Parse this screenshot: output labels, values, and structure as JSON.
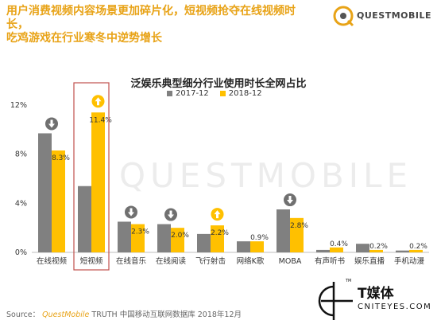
{
  "header": {
    "headline_line1": "用户消费视频内容场景更加碎片化，短视频抢夺在线视频时长，",
    "headline_line2": "吃鸡游戏在行业寒冬中逆势增长",
    "logo_text": "QUESTMOBILE"
  },
  "watermark": "QUESTMOBILE",
  "source": {
    "prefix": "Source：",
    "brand": "QuestMobile",
    "rest": "TRUTH 中国移动互联网数据库 2018年12月"
  },
  "brand": {
    "title": "T媒体",
    "subtitle": "CNITEYES.COM",
    "tm": "TM"
  },
  "colors": {
    "series_2017": "#808080",
    "series_2018": "#ffc000",
    "headline": "#e8a317",
    "highlight_box": "#c0504d",
    "arrow_up": "#ffc000",
    "arrow_down": "#707070"
  },
  "chart_data": {
    "type": "bar",
    "title": "泛娱乐典型细分行业使用时长全网占比",
    "categories": [
      "在线视频",
      "短视频",
      "在线音乐",
      "在线阅读",
      "飞行射击",
      "网络K歌",
      "MOBA",
      "有声听书",
      "娱乐直播",
      "手机动漫"
    ],
    "series": [
      {
        "name": "2017-12",
        "values": [
          9.7,
          5.4,
          2.5,
          2.3,
          1.5,
          0.9,
          3.5,
          0.2,
          0.7,
          0.15
        ]
      },
      {
        "name": "2018-12",
        "values": [
          8.3,
          11.4,
          2.3,
          2.0,
          2.2,
          0.9,
          2.8,
          0.4,
          0.2,
          0.2
        ]
      }
    ],
    "data_labels_2018": [
      "8.3%",
      "11.4%",
      "2.3%",
      "2.0%",
      "2.2%",
      "0.9%",
      "2.8%",
      "0.4%",
      "0.2%",
      "0.2%"
    ],
    "trend_arrows": [
      "down",
      "up",
      "down",
      "down",
      "up",
      "",
      "down",
      "",
      "",
      ""
    ],
    "highlighted_category": "短视频",
    "yticks": [
      "0%",
      "4%",
      "8%",
      "12%"
    ],
    "ylim": [
      0,
      12
    ],
    "legend_position": "top-center"
  }
}
